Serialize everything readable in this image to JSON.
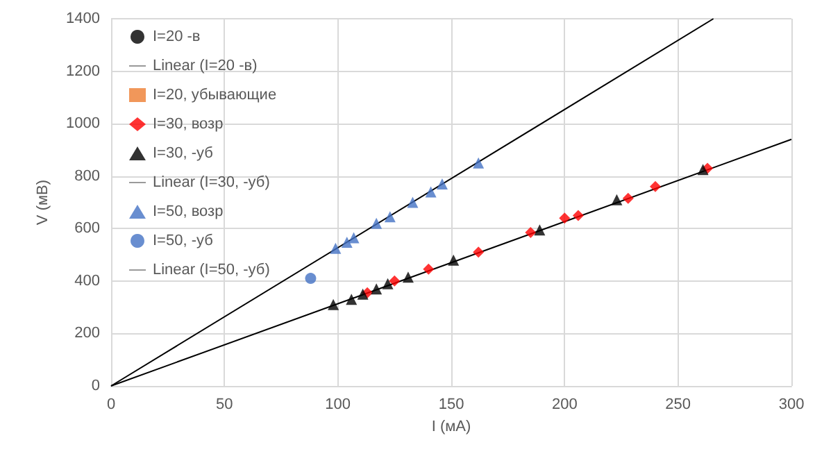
{
  "chart_data": {
    "type": "scatter",
    "xlabel": "I (мА)",
    "ylabel": "V (мВ)",
    "xlim": [
      0,
      300
    ],
    "xticks": [
      0,
      50,
      100,
      150,
      200,
      250,
      300
    ],
    "ylim": [
      0,
      1400
    ],
    "yticks": [
      0,
      200,
      400,
      600,
      800,
      1000,
      1200,
      1400
    ],
    "grid": true,
    "legend": "top left",
    "series": [
      {
        "name": "I=20 -в",
        "marker": "circle",
        "color": "#000000"
      },
      {
        "name": "Linear (I=20 -в)",
        "type": "line",
        "marker": "none",
        "color": "#000000",
        "x": [
          0,
          265.6
        ],
        "values": [
          0,
          1400
        ]
      },
      {
        "name": "I=20, убывающие",
        "marker": "square",
        "color": "#ed7d31"
      },
      {
        "name": "I=30, возр",
        "marker": "diamond",
        "color": "#ff0000",
        "x": [
          113,
          125,
          140,
          162,
          185,
          200,
          206,
          228,
          240,
          263
        ],
        "values": [
          355,
          400,
          445,
          510,
          585,
          640,
          650,
          715,
          760,
          830
        ]
      },
      {
        "name": "I=30, -уб",
        "marker": "triangle",
        "color": "#000000",
        "x": [
          98,
          106,
          111,
          117,
          122,
          131,
          151,
          189,
          223,
          261
        ],
        "values": [
          310,
          330,
          350,
          370,
          390,
          415,
          480,
          595,
          710,
          825
        ]
      },
      {
        "name": "Linear (I=30, -уб)",
        "type": "line",
        "marker": "none",
        "color": "#000000",
        "x": [
          0,
          300
        ],
        "values": [
          0,
          940
        ]
      },
      {
        "name": "I=50, возр",
        "marker": "triangle",
        "color": "#4472c4",
        "x": [
          99,
          104,
          107,
          117,
          123,
          133,
          141,
          146,
          162
        ],
        "values": [
          525,
          548,
          565,
          620,
          645,
          700,
          740,
          770,
          850
        ]
      },
      {
        "name": "I=50, -уб",
        "marker": "circle",
        "color": "#4472c4",
        "x": [
          88
        ],
        "values": [
          410
        ]
      },
      {
        "name": "Linear (I=50, -уб)",
        "type": "line",
        "marker": "none",
        "color": "#000000"
      }
    ]
  }
}
